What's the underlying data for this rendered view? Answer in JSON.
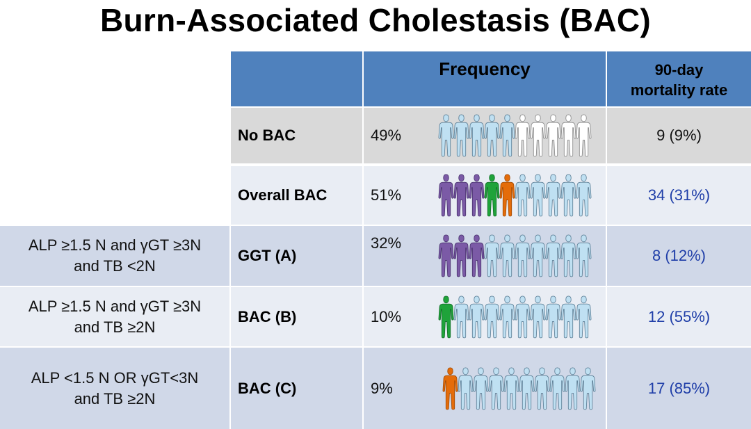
{
  "title": "Burn-Associated Cholestasis (BAC)",
  "header": {
    "frequency": "Frequency",
    "mortality_line1": "90-day",
    "mortality_line2": "mortality rate"
  },
  "colors": {
    "header_bg": "#4f81bd",
    "row_gray": "#d9d9d9",
    "row_light": "#e9edf4",
    "row_mid": "#d0d8e8",
    "figure_light_blue": "#bfe0f2",
    "figure_white": "#ffffff",
    "figure_purple": "#7b5aa6",
    "figure_green": "#1fa33a",
    "figure_orange": "#e46c0a",
    "mortality_blue": "#1f3ea8",
    "mortality_black": "#111111"
  },
  "rows": [
    {
      "criteria_line1": "",
      "criteria_line2": "",
      "name": "No BAC",
      "frequency": "49%",
      "mortality": "9 (9%)",
      "mortality_color": "#111111",
      "bg": "#d9d9d9",
      "figures": [
        "blue",
        "blue",
        "blue",
        "blue",
        "blue",
        "white",
        "white",
        "white",
        "white",
        "white"
      ]
    },
    {
      "criteria_line1": "",
      "criteria_line2": "",
      "name": "Overall BAC",
      "frequency": "51%",
      "mortality": "34 (31%)",
      "mortality_color": "#1f3ea8",
      "bg": "#e9edf4",
      "figures": [
        "purple",
        "purple",
        "purple",
        "green",
        "orange",
        "blue",
        "blue",
        "blue",
        "blue",
        "blue"
      ]
    },
    {
      "criteria_line1": "ALP ≥1.5 N and γGT ≥3N",
      "criteria_line2": "and TB <2N",
      "name": "GGT (A)",
      "frequency": "32%",
      "mortality": "8 (12%)",
      "mortality_color": "#1f3ea8",
      "bg": "#d0d8e8",
      "figures": [
        "purple",
        "purple",
        "purple",
        "blue",
        "blue",
        "blue",
        "blue",
        "blue",
        "blue",
        "blue"
      ]
    },
    {
      "criteria_line1": "ALP ≥1.5 N and γGT ≥3N",
      "criteria_line2": "and TB ≥2N",
      "name": "BAC (B)",
      "frequency": "10%",
      "mortality": "12 (55%)",
      "mortality_color": "#1f3ea8",
      "bg": "#e9edf4",
      "figures": [
        "green",
        "blue",
        "blue",
        "blue",
        "blue",
        "blue",
        "blue",
        "blue",
        "blue",
        "blue"
      ]
    },
    {
      "criteria_line1": "ALP <1.5 N OR γGT<3N",
      "criteria_line2": "and TB ≥2N",
      "name": "BAC (C)",
      "frequency": "9%",
      "mortality": "17 (85%)",
      "mortality_color": "#1f3ea8",
      "bg": "#d0d8e8",
      "figures": [
        "orange",
        "blue",
        "blue",
        "blue",
        "blue",
        "blue",
        "blue",
        "blue",
        "blue",
        "blue"
      ]
    }
  ]
}
